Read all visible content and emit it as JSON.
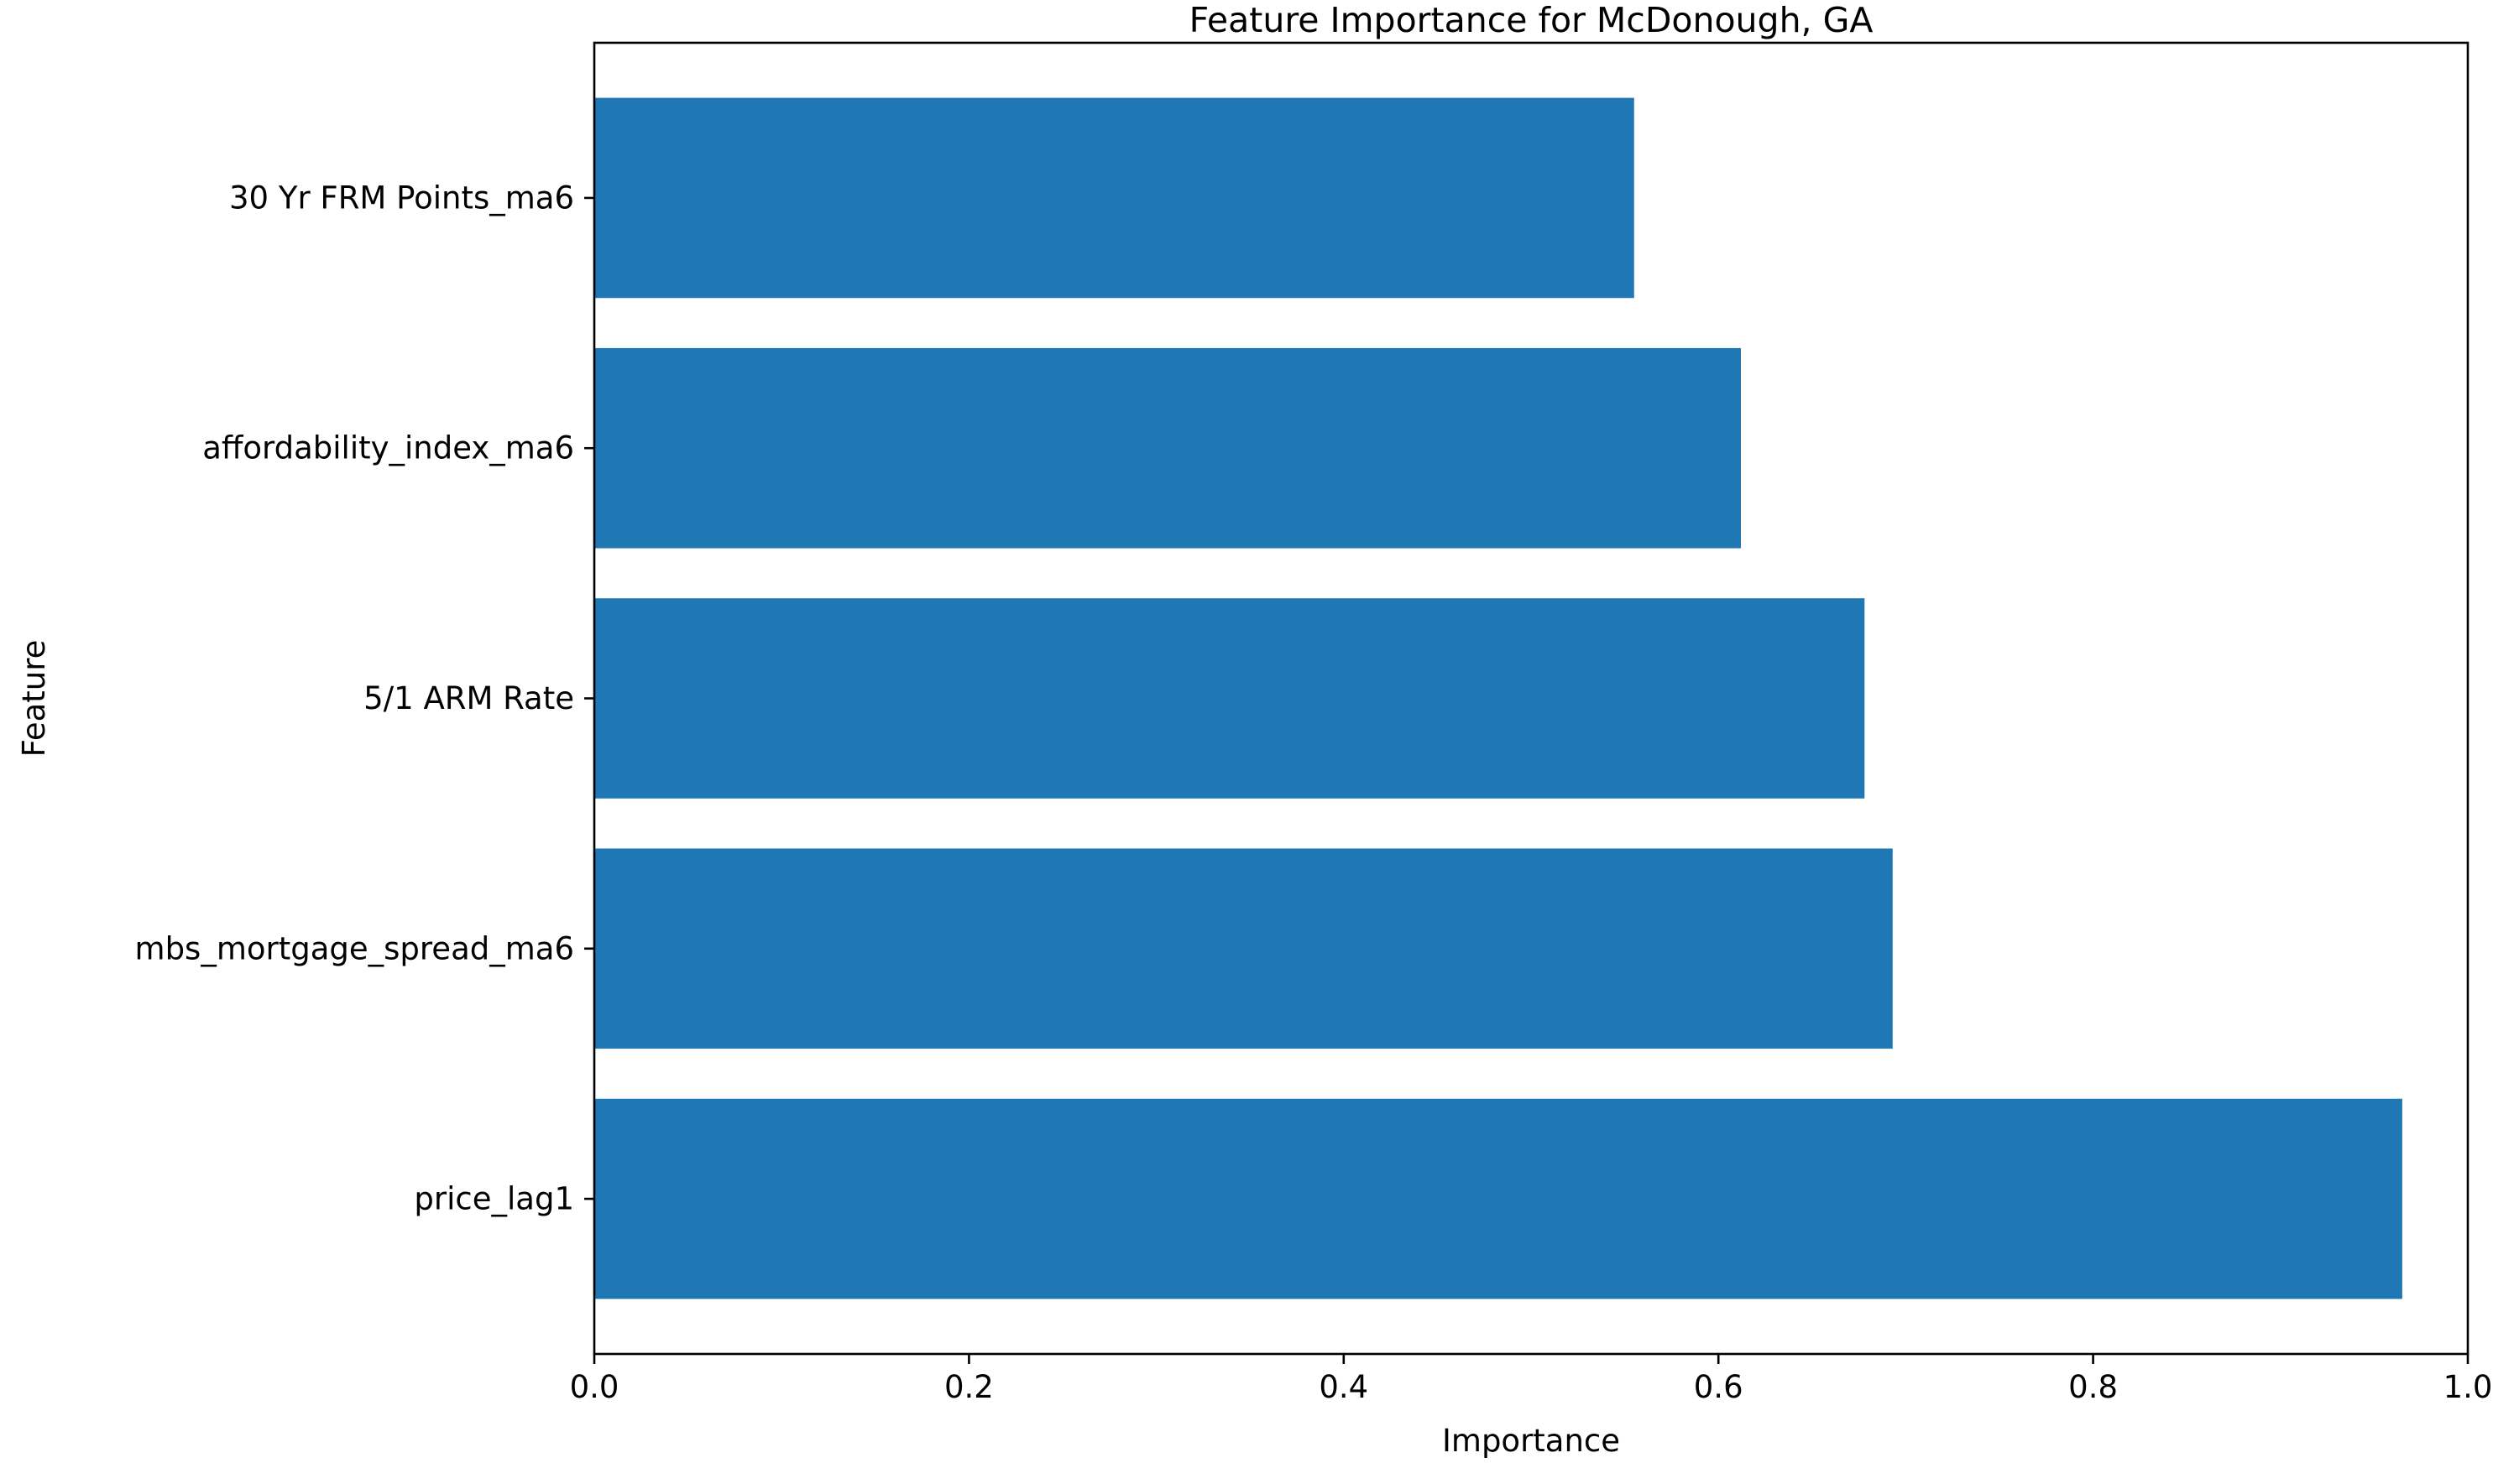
{
  "chart_data": {
    "type": "bar",
    "orientation": "horizontal",
    "title": "Feature Importance for McDonough, GA",
    "xlabel": "Importance",
    "ylabel": "Feature",
    "categories": [
      "price_lag1",
      "mbs_mortgage_spread_ma6",
      "5/1 ARM Rate",
      "affordability_index_ma6",
      "30 Yr FRM Points_ma6"
    ],
    "values": [
      0.965,
      0.693,
      0.678,
      0.612,
      0.555
    ],
    "xlim": [
      0.0,
      1.0
    ],
    "xticks": [
      "0.0",
      "0.2",
      "0.4",
      "0.6",
      "0.8",
      "1.0"
    ],
    "bar_color": "#1f77b4",
    "grid": false,
    "legend": false
  }
}
